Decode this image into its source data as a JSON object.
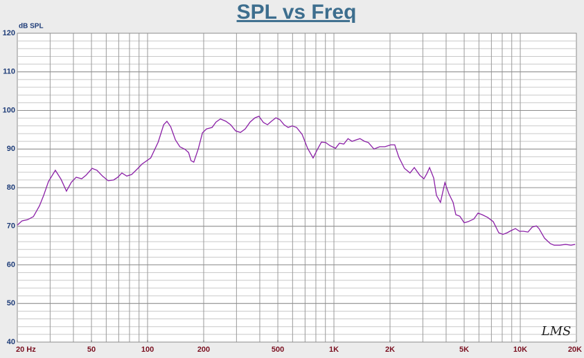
{
  "chart_data": {
    "type": "line",
    "title": "SPL vs Freq",
    "y_label": "dB SPL",
    "watermark": "LMS",
    "x": [
      20,
      21.2,
      22.7,
      24.4,
      26.3,
      27.7,
      29.4,
      32.0,
      34.3,
      36.7,
      39.0,
      41.4,
      44.3,
      46.7,
      50.4,
      53.5,
      57.3,
      61.4,
      65.8,
      69.2,
      72.8,
      77.3,
      82.1,
      87.9,
      93.3,
      104,
      114,
      122,
      127,
      133,
      141,
      149,
      159,
      166,
      171,
      177,
      187,
      197,
      207,
      222,
      233,
      246,
      263,
      279,
      297,
      315,
      334,
      355,
      377,
      396,
      418,
      440,
      462,
      488,
      513,
      540,
      568,
      598,
      630,
      675,
      722,
      773,
      815,
      857,
      902,
      951,
      1020,
      1070,
      1130,
      1190,
      1250,
      1320,
      1380,
      1460,
      1530,
      1640,
      1760,
      1880,
      2020,
      2120,
      2230,
      2390,
      2560,
      2700,
      2890,
      3040,
      3150,
      3260,
      3430,
      3550,
      3730,
      3940,
      4140,
      4360,
      4510,
      4740,
      5000,
      5260,
      5640,
      5930,
      6240,
      6680,
      7160,
      7670,
      8070,
      8490,
      8950,
      9420,
      9910,
      10400,
      11000,
      11600,
      12200,
      12600,
      13500,
      14500,
      15200,
      16300,
      17500,
      18700,
      19700
    ],
    "values": [
      70.3,
      71.4,
      71.7,
      72.5,
      75.3,
      78.0,
      81.6,
      84.5,
      82.2,
      79.1,
      81.4,
      82.7,
      82.3,
      83.2,
      85.0,
      84.5,
      83.0,
      81.8,
      82.0,
      82.7,
      83.8,
      83.0,
      83.4,
      84.8,
      86.1,
      87.7,
      91.8,
      96.3,
      97.2,
      95.8,
      92.4,
      90.6,
      89.9,
      89.1,
      87.0,
      86.6,
      90.0,
      94.2,
      95.2,
      95.6,
      97.0,
      97.8,
      97.2,
      96.3,
      94.7,
      94.3,
      95.2,
      97.0,
      98.1,
      98.5,
      96.9,
      96.3,
      97.2,
      98.1,
      97.6,
      96.3,
      95.6,
      96.0,
      95.6,
      93.8,
      90.2,
      87.7,
      89.9,
      91.8,
      91.7,
      90.9,
      90.2,
      91.5,
      91.3,
      92.7,
      92.0,
      92.4,
      92.7,
      92.0,
      91.7,
      90.0,
      90.6,
      90.6,
      91.1,
      91.1,
      87.9,
      85.0,
      83.8,
      85.2,
      83.2,
      82.3,
      83.6,
      85.2,
      82.5,
      78.0,
      76.2,
      81.3,
      78.4,
      76.2,
      73.0,
      72.6,
      70.9,
      71.2,
      71.9,
      73.4,
      73.0,
      72.3,
      71.2,
      68.3,
      67.9,
      68.3,
      68.9,
      69.4,
      68.7,
      68.7,
      68.5,
      69.8,
      70.1,
      69.4,
      66.9,
      65.5,
      65.1,
      65.1,
      65.3,
      65.1,
      65.3
    ],
    "color": "#8a1fa6",
    "log_x": true,
    "grid": true,
    "xlim": [
      20,
      20000
    ],
    "ylim": [
      40,
      120
    ],
    "xticks": [
      {
        "value": 20,
        "label": "20 Hz"
      },
      50,
      100,
      200,
      500,
      {
        "value": 1000,
        "label": "1K"
      },
      {
        "value": 2000,
        "label": "2K"
      },
      {
        "value": 5000,
        "label": "5K"
      },
      {
        "value": 10000,
        "label": "10K"
      },
      {
        "value": 20000,
        "label": "20K"
      }
    ],
    "yticks": [
      40,
      50,
      60,
      70,
      80,
      90,
      100,
      110,
      120
    ]
  }
}
